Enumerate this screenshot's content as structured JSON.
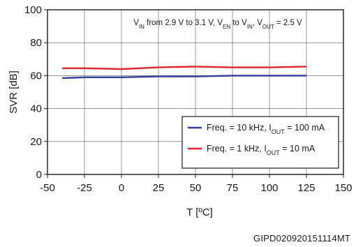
{
  "chart_data": {
    "type": "line",
    "title": "",
    "xlabel": "T [ºC]",
    "ylabel": "SVR [dB]",
    "xlim": [
      -50,
      150
    ],
    "ylim": [
      0,
      100
    ],
    "xticks": [
      -50,
      -25,
      0,
      25,
      50,
      75,
      100,
      125,
      150
    ],
    "yticks": [
      0,
      20,
      40,
      60,
      80,
      100
    ],
    "grid": true,
    "legend_position": "bottom-right",
    "annotation": {
      "parts": [
        "V",
        "IN",
        " from 2.9 V to 3.1 V, V",
        "EN",
        " to V",
        "IN",
        ", V",
        "OUT",
        " = 2.5 V"
      ]
    },
    "figure_code": "GIPD020920151114MT",
    "series": [
      {
        "legend_parts": [
          "Freq. = 10 kHz, I",
          "OUT",
          " = 100 mA"
        ],
        "color": "#2e3f97",
        "x": [
          -40,
          -25,
          0,
          25,
          50,
          75,
          100,
          125
        ],
        "y": [
          58.5,
          59,
          59,
          59.5,
          59.5,
          60,
          60,
          60
        ]
      },
      {
        "legend_parts": [
          "Freq. = 1 kHz, I",
          "OUT",
          " = 10 mA"
        ],
        "color": "#e0262b",
        "x": [
          -40,
          -25,
          0,
          25,
          50,
          75,
          100,
          125
        ],
        "y": [
          64.5,
          64.5,
          64,
          65,
          65.5,
          65,
          65,
          65.5
        ]
      }
    ]
  }
}
